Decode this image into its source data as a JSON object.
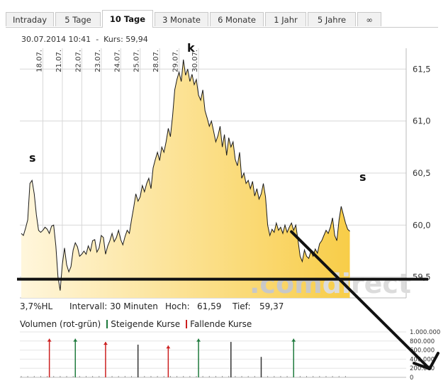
{
  "tabs": [
    {
      "label": "Intraday",
      "active": false
    },
    {
      "label": "5 Tage",
      "active": false
    },
    {
      "label": "10 Tage",
      "active": true
    },
    {
      "label": "3 Monate",
      "active": false
    },
    {
      "label": "6 Monate",
      "active": false
    },
    {
      "label": "1 Jahr",
      "active": false
    },
    {
      "label": "5 Jahre",
      "active": false
    },
    {
      "label": "∞",
      "active": false
    }
  ],
  "quote": {
    "datetime": "30.07.2014 10:41",
    "separator": "-",
    "kurs_label": "Kurs:",
    "kurs_value": "59,94"
  },
  "stats": {
    "hl": "3,7%HL",
    "intervall": "Intervall: 30 Minuten",
    "hoch_label": "Hoch:",
    "hoch_value": "61,59",
    "tief_label": "Tief:",
    "tief_value": "59,37"
  },
  "volume_legend": {
    "title": "Volumen (rot-grün)",
    "rising": "Steigende Kurse",
    "falling": "Fallende Kurse"
  },
  "watermark": {
    "part1": ".com",
    "part2": "direct"
  },
  "colors": {
    "area_light": "#fff6dc",
    "area_dark": "#f8cd48",
    "price_line": "#1a1a1a",
    "rising": "#1e7a3c",
    "falling": "#cc1f1f",
    "volume_neutral": "#333333",
    "grid": "#d8d8d8",
    "watermark_com": "#c8c8c8",
    "watermark_direct": "#dcdcdc",
    "annotation": "#111111"
  },
  "chart_data": [
    {
      "type": "area",
      "y_ticks": [
        59.5,
        60.0,
        60.5,
        61.0,
        61.5
      ],
      "y_tick_labels": [
        "59,5",
        "60,0",
        "60,5",
        "61,0",
        "61,5"
      ],
      "ylim": [
        59.3,
        61.7
      ],
      "date_labels": [
        "18.07.",
        "21.07.",
        "22.07.",
        "23.07.",
        "24.07.",
        "25.07.",
        "28.07.",
        "29.07.",
        "30.07."
      ],
      "x_index_range": [
        0,
        162
      ],
      "date_positions": [
        10,
        19,
        28,
        37,
        46,
        55,
        64,
        73,
        82
      ],
      "grid": true,
      "price": [
        59.92,
        59.9,
        59.97,
        60.05,
        60.4,
        60.43,
        60.3,
        60.1,
        59.95,
        59.93,
        59.95,
        59.98,
        59.96,
        59.92,
        59.99,
        60.0,
        59.8,
        59.5,
        59.37,
        59.62,
        59.78,
        59.62,
        59.55,
        59.6,
        59.76,
        59.83,
        59.79,
        59.7,
        59.72,
        59.75,
        59.72,
        59.8,
        59.75,
        59.85,
        59.86,
        59.74,
        59.78,
        59.9,
        59.88,
        59.72,
        59.8,
        59.85,
        59.92,
        59.84,
        59.88,
        59.95,
        59.86,
        59.81,
        59.89,
        59.95,
        59.92,
        60.05,
        60.17,
        60.3,
        60.23,
        60.27,
        60.38,
        60.32,
        60.4,
        60.45,
        60.35,
        60.55,
        60.63,
        60.7,
        60.62,
        60.75,
        60.7,
        60.8,
        60.93,
        60.85,
        61.05,
        61.3,
        61.4,
        61.47,
        61.38,
        61.59,
        61.44,
        61.5,
        61.38,
        61.45,
        61.35,
        61.4,
        61.25,
        61.2,
        61.3,
        61.1,
        61.03,
        60.95,
        61.0,
        60.9,
        60.8,
        60.86,
        60.95,
        60.75,
        60.87,
        60.67,
        60.84,
        60.75,
        60.8,
        60.63,
        60.57,
        60.7,
        60.45,
        60.5,
        60.4,
        60.43,
        60.35,
        60.42,
        60.28,
        60.35,
        60.25,
        60.3,
        60.4,
        60.27,
        60.0,
        59.9,
        59.96,
        59.93,
        60.02,
        59.95,
        59.98,
        59.92,
        60.0,
        59.93,
        59.98,
        60.02,
        59.95,
        60.0,
        59.86,
        59.7,
        59.65,
        59.76,
        59.7,
        59.68,
        59.75,
        59.7,
        59.77,
        59.73,
        59.82,
        59.85,
        59.9,
        59.95,
        59.92,
        59.98,
        60.07,
        59.9,
        59.85,
        60.05,
        60.18,
        60.1,
        60.02,
        59.96,
        59.94
      ]
    },
    {
      "type": "bar",
      "y_ticks": [
        0,
        200000,
        400000,
        600000,
        800000,
        1000000
      ],
      "y_tick_labels": [
        "0",
        "200.000",
        "400.000",
        "600.000",
        "800.000",
        "1.000.000"
      ],
      "ylim": [
        0,
        1000000
      ],
      "volume_spikes": [
        {
          "index": 13,
          "value": 850000,
          "direction": "falling"
        },
        {
          "index": 25,
          "value": 850000,
          "direction": "rising"
        },
        {
          "index": 39,
          "value": 780000,
          "direction": "falling"
        },
        {
          "index": 54,
          "value": 720000,
          "direction": "neutral"
        },
        {
          "index": 68,
          "value": 700000,
          "direction": "falling"
        },
        {
          "index": 82,
          "value": 850000,
          "direction": "rising"
        },
        {
          "index": 97,
          "value": 780000,
          "direction": "neutral"
        },
        {
          "index": 111,
          "value": 450000,
          "direction": "neutral"
        },
        {
          "index": 126,
          "value": 850000,
          "direction": "rising"
        }
      ]
    }
  ],
  "annotations": {
    "shoulder_left": "s",
    "head": "k",
    "shoulder_right": "s",
    "neckline_level": 59.48,
    "arrow_start": [
      124,
      59.95
    ],
    "arrow_end_price": 59.1
  }
}
